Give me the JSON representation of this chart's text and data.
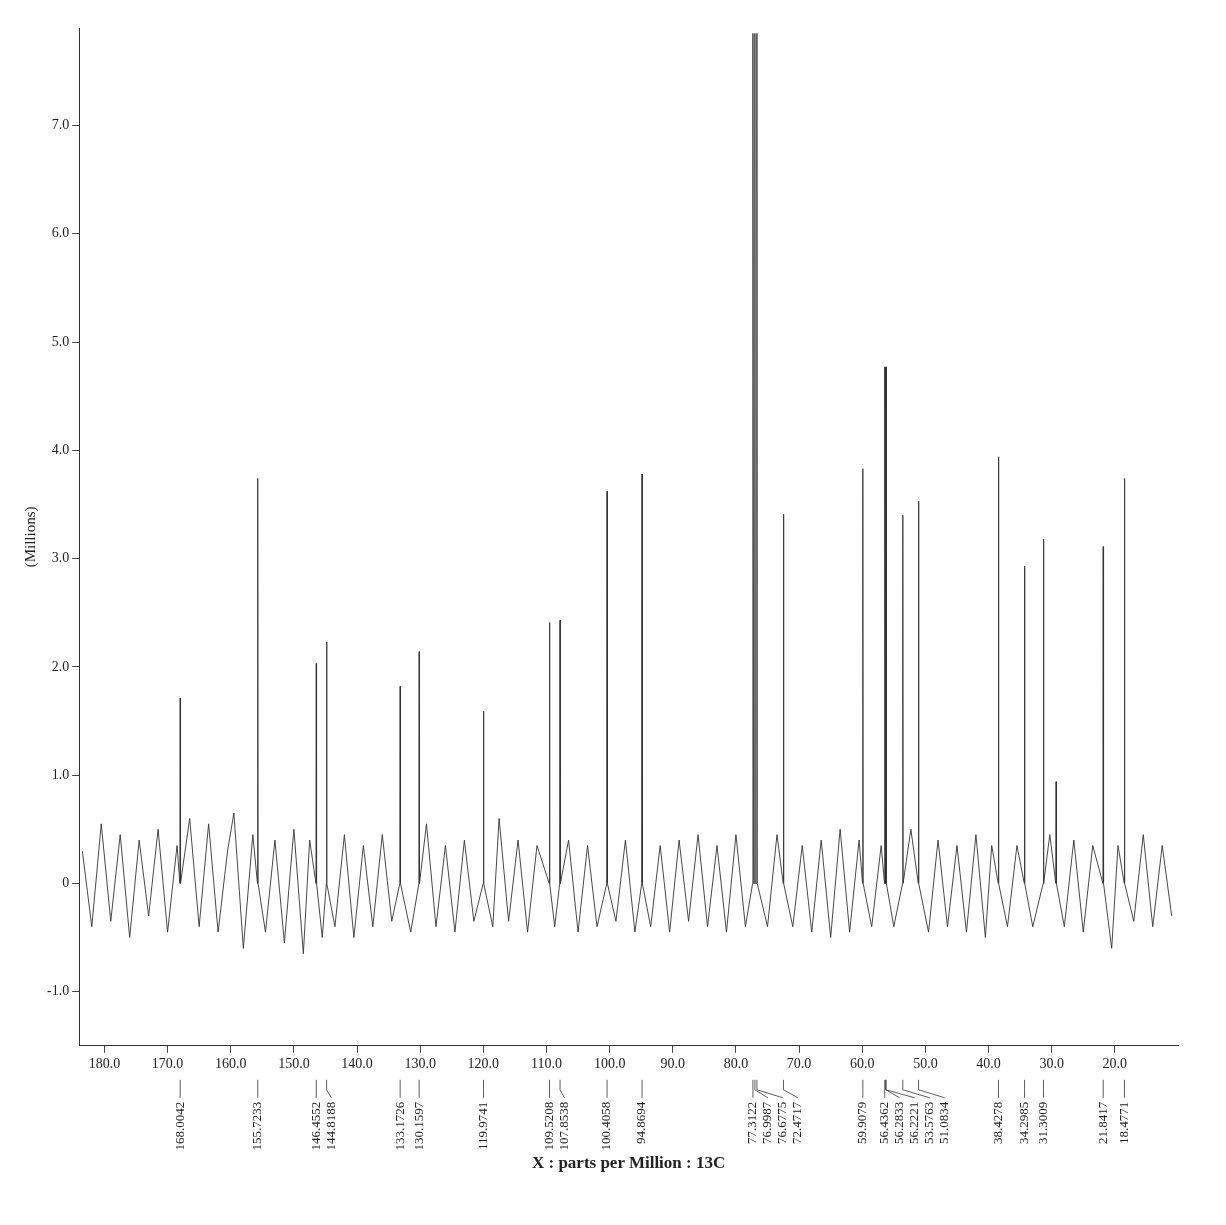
{
  "chart_data": {
    "type": "line",
    "xlabel": "X : parts per Million : 13C",
    "ylabel": "(Millions)",
    "xlim": [
      184,
      10
    ],
    "xticks": [
      {
        "value": 20,
        "label": "20.0"
      },
      {
        "value": 30,
        "label": "30.0"
      },
      {
        "value": 40,
        "label": "40.0"
      },
      {
        "value": 50,
        "label": "50.0"
      },
      {
        "value": 60,
        "label": "60.0"
      },
      {
        "value": 70,
        "label": "70.0"
      },
      {
        "value": 80,
        "label": "80.0"
      },
      {
        "value": 90,
        "label": "90.0"
      },
      {
        "value": 100,
        "label": "100.0"
      },
      {
        "value": 110,
        "label": "110.0"
      },
      {
        "value": 120,
        "label": "120.0"
      },
      {
        "value": 130,
        "label": "130.0"
      },
      {
        "value": 140,
        "label": "140.0"
      },
      {
        "value": 150,
        "label": "150.0"
      },
      {
        "value": 160,
        "label": "160.0"
      },
      {
        "value": 170,
        "label": "170.0"
      },
      {
        "value": 180,
        "label": "180.0"
      }
    ],
    "ylim": [
      -1.5,
      7.9
    ],
    "yticks": [
      {
        "value": -1,
        "label": "-1.0"
      },
      0,
      {
        "value": 1,
        "label": "1.0"
      },
      {
        "value": 2,
        "label": "2.0"
      },
      {
        "value": 3,
        "label": "3.0"
      },
      {
        "value": 4,
        "label": "4.0"
      },
      {
        "value": 5,
        "label": "5.0"
      },
      {
        "value": 6,
        "label": "6.0"
      },
      {
        "value": 7,
        "label": "7.0"
      }
    ],
    "grid": false,
    "legend": false,
    "marker": "none",
    "line_style": "solid",
    "series": [
      {
        "color": "#333333",
        "x": [
          183.5,
          182,
          180.5,
          179,
          177.5,
          176,
          174.5,
          173,
          171.5,
          170,
          168.5,
          168.05,
          168.0042,
          167.95,
          166.5,
          165,
          163.5,
          162,
          160.5,
          159.5,
          158,
          156.5,
          155.77,
          155.7233,
          155.67,
          154.5,
          153,
          151.5,
          150,
          148.5,
          147.5,
          146.5,
          146.4552,
          146.41,
          145.5,
          144.86,
          144.8188,
          144.77,
          143.5,
          142,
          140.5,
          139,
          137.5,
          136,
          134.5,
          133.22,
          133.1726,
          133.12,
          131.5,
          130.2,
          130.1597,
          130.11,
          129,
          127.5,
          126,
          124.5,
          123,
          121.5,
          120.02,
          119.9741,
          119.92,
          118.5,
          117.5,
          116,
          114.5,
          113,
          111.5,
          109.57,
          109.5208,
          109.47,
          108.7,
          107.9,
          107.8538,
          107.8,
          106.5,
          105,
          103.5,
          102,
          100.45,
          100.4058,
          100.36,
          99,
          97.5,
          96,
          94.92,
          94.8694,
          94.82,
          93.5,
          92,
          90.5,
          89,
          87.5,
          86,
          84.5,
          83,
          81.5,
          80,
          78.5,
          77.36,
          77.3122,
          77.2,
          77.05,
          76.9987,
          76.95,
          76.72,
          76.6775,
          76.63,
          75,
          73.5,
          72.52,
          72.4717,
          72.42,
          71,
          69.5,
          68,
          66.5,
          65,
          63.5,
          62,
          60.5,
          59.95,
          59.9079,
          59.86,
          58.5,
          57,
          56.48,
          56.4362,
          56.36,
          56.2833,
          56.25,
          56.2221,
          56.18,
          55,
          53.62,
          53.5763,
          53.53,
          52.3,
          51.13,
          51.0834,
          51.04,
          49.5,
          48,
          46.5,
          45,
          43.5,
          42,
          40.5,
          39.5,
          38.47,
          38.4278,
          38.38,
          37,
          35.5,
          34.34,
          34.2985,
          34.25,
          33,
          31.35,
          31.3009,
          31.25,
          30.3,
          29.35,
          29.3,
          29.25,
          28,
          26.5,
          25,
          23.5,
          21.89,
          21.8417,
          21.79,
          20.5,
          19.5,
          18.52,
          18.4771,
          18.43,
          17,
          15.5,
          14,
          12.5,
          11
        ],
        "values": [
          0.3,
          -0.4,
          0.55,
          -0.35,
          0.45,
          -0.5,
          0.4,
          -0.3,
          0.5,
          -0.45,
          0.35,
          0,
          1.71,
          0,
          0.6,
          -0.4,
          0.55,
          -0.45,
          0.3,
          0.65,
          -0.6,
          0.45,
          0,
          3.74,
          0,
          -0.45,
          0.4,
          -0.55,
          0.5,
          -0.65,
          0.4,
          0,
          2.03,
          0,
          -0.5,
          0,
          2.23,
          0,
          -0.4,
          0.45,
          -0.5,
          0.35,
          -0.4,
          0.45,
          -0.35,
          0,
          1.82,
          0,
          -0.45,
          0,
          2.14,
          0,
          0.55,
          -0.4,
          0.35,
          -0.45,
          0.4,
          -0.35,
          0,
          1.59,
          0,
          -0.4,
          0.6,
          -0.35,
          0.4,
          -0.45,
          0.35,
          0,
          2.41,
          0,
          -0.4,
          0,
          2.43,
          0,
          0.4,
          -0.45,
          0.35,
          -0.4,
          0,
          3.62,
          0,
          -0.35,
          0.4,
          -0.45,
          0,
          3.78,
          0,
          -0.4,
          0.35,
          -0.45,
          0.4,
          -0.35,
          0.45,
          -0.4,
          0.35,
          -0.45,
          0.45,
          -0.4,
          0,
          7.85,
          0,
          0,
          7.85,
          0,
          0,
          7.85,
          0,
          -0.4,
          0.45,
          0,
          3.41,
          0,
          -0.4,
          0.35,
          -0.45,
          0.4,
          -0.5,
          0.5,
          -0.45,
          0.4,
          0,
          3.83,
          0,
          -0.4,
          0.35,
          0,
          4.77,
          0,
          4.77,
          0,
          4.77,
          0,
          -0.4,
          0,
          3.4,
          0,
          0.5,
          0,
          3.53,
          0,
          -0.45,
          0.4,
          -0.4,
          0.35,
          -0.45,
          0.45,
          -0.5,
          0.35,
          0,
          3.94,
          0,
          -0.4,
          0.35,
          0,
          2.93,
          0,
          -0.4,
          0,
          3.18,
          0,
          0.45,
          0,
          0.94,
          0,
          -0.4,
          0.4,
          -0.45,
          0.35,
          0,
          3.11,
          0,
          -0.6,
          0.35,
          0,
          3.74,
          0,
          -0.35,
          0.45,
          -0.4,
          0.35,
          -0.3
        ]
      }
    ],
    "annotations": [
      {
        "text": "18.4771",
        "x": 18.4771
      },
      {
        "text": "21.8417",
        "x": 21.8417
      },
      {
        "text": "31.3009",
        "x": 31.3009
      },
      {
        "text": "34.2985",
        "x": 34.2985
      },
      {
        "text": "38.4278",
        "x": 38.4278
      },
      {
        "text": "51.0834",
        "x": 51.0834
      },
      {
        "text": "53.5763",
        "x": 53.5763
      },
      {
        "text": "56.2221",
        "x": 56.2221
      },
      {
        "text": "56.2833",
        "x": 56.2833
      },
      {
        "text": "56.4362",
        "x": 56.4362
      },
      {
        "text": "59.9079",
        "x": 59.9079
      },
      {
        "text": "72.4717",
        "x": 72.4717
      },
      {
        "text": "76.6775",
        "x": 76.6775
      },
      {
        "text": "76.9987",
        "x": 76.9987
      },
      {
        "text": "77.3122",
        "x": 77.3122
      },
      {
        "text": "94.8694",
        "x": 94.8694
      },
      {
        "text": "100.4058",
        "x": 100.4058
      },
      {
        "text": "107.8538",
        "x": 107.8538
      },
      {
        "text": "109.5208",
        "x": 109.5208
      },
      {
        "text": "119.9741",
        "x": 119.9741
      },
      {
        "text": "130.1597",
        "x": 130.1597
      },
      {
        "text": "133.1726",
        "x": 133.1726
      },
      {
        "text": "144.8188",
        "x": 144.8188
      },
      {
        "text": "146.4552",
        "x": 146.4552
      },
      {
        "text": "155.7233",
        "x": 155.7233
      },
      {
        "text": "168.0042",
        "x": 168.0042
      }
    ]
  }
}
